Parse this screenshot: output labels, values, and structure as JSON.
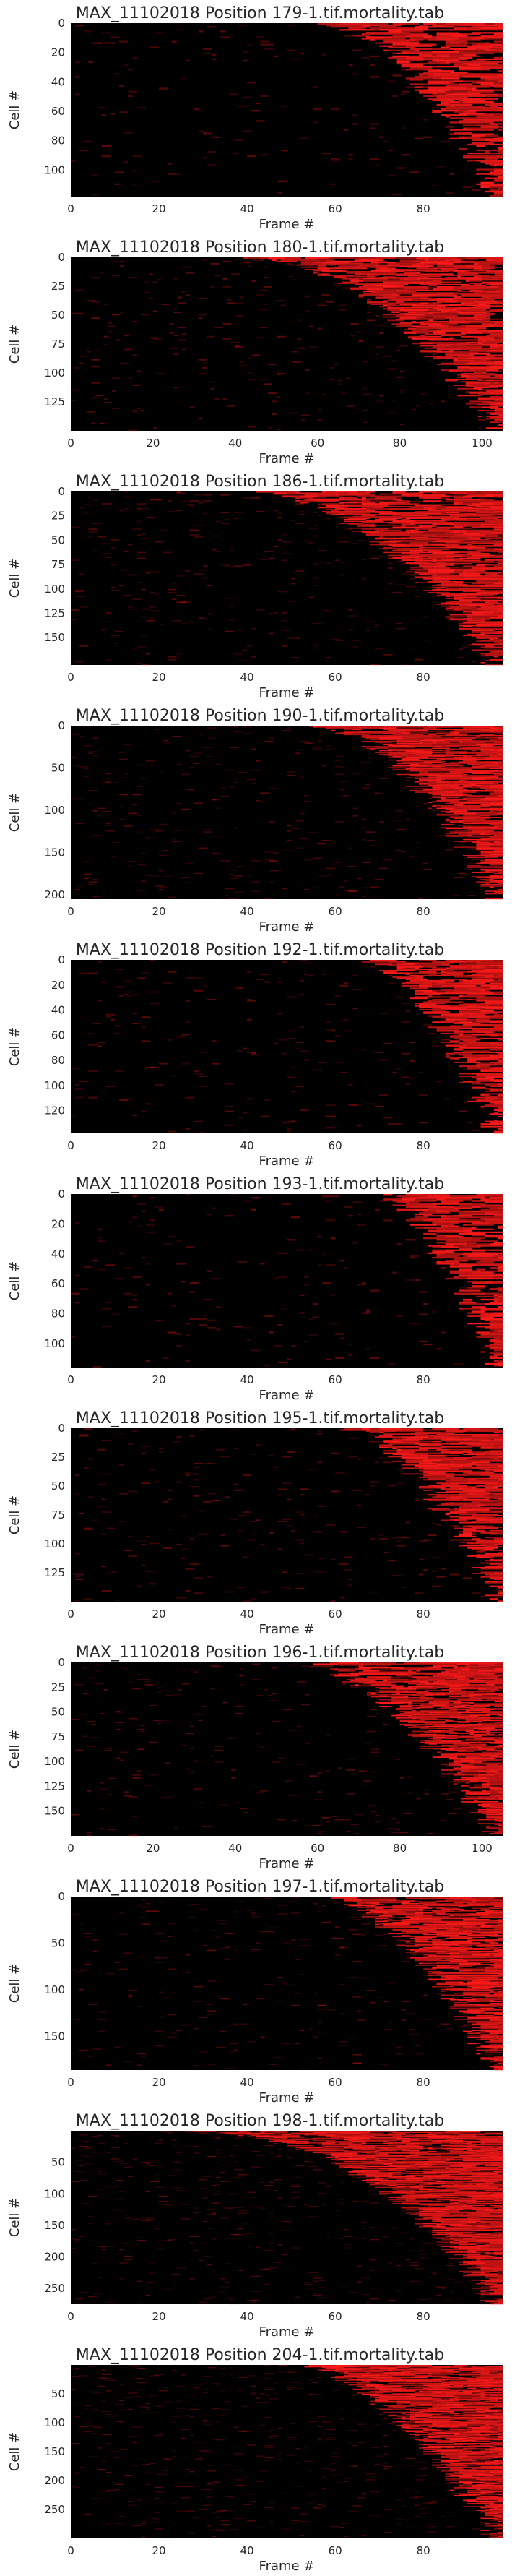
{
  "chart_data": [
    {
      "type": "heatmap",
      "title": "MAX_11102018 Position 179-1.tif.mortality.tab",
      "xlabel": "Frame #",
      "ylabel": "Cell #",
      "xlim": [
        0,
        98
      ],
      "ylim": [
        0,
        118
      ],
      "xticks": [
        "0",
        "20",
        "40",
        "60",
        "80"
      ],
      "yticks": [
        "0",
        "20",
        "40",
        "60",
        "80",
        "100"
      ],
      "xtick_values": [
        0,
        20,
        40,
        60,
        80
      ],
      "ytick_values": [
        0,
        20,
        40,
        60,
        80,
        100
      ],
      "onset": {
        "first_frame": 58,
        "last_frame": 97,
        "shape": 0.55
      }
    },
    {
      "type": "heatmap",
      "title": "MAX_11102018 Position 180-1.tif.mortality.tab",
      "xlabel": "Frame #",
      "ylabel": "Cell #",
      "xlim": [
        0,
        105
      ],
      "ylim": [
        0,
        150
      ],
      "xticks": [
        "0",
        "20",
        "40",
        "60",
        "80",
        "100"
      ],
      "yticks": [
        "0",
        "25",
        "50",
        "75",
        "100",
        "125"
      ],
      "xtick_values": [
        0,
        20,
        40,
        60,
        80,
        100
      ],
      "ytick_values": [
        0,
        25,
        50,
        75,
        100,
        125
      ],
      "onset": {
        "first_frame": 44,
        "last_frame": 104,
        "shape": 0.5
      }
    },
    {
      "type": "heatmap",
      "title": "MAX_11102018 Position 186-1.tif.mortality.tab",
      "xlabel": "Frame #",
      "ylabel": "Cell #",
      "xlim": [
        0,
        98
      ],
      "ylim": [
        0,
        178
      ],
      "xticks": [
        "0",
        "20",
        "40",
        "60",
        "80"
      ],
      "yticks": [
        "0",
        "25",
        "50",
        "75",
        "100",
        "125",
        "150"
      ],
      "xtick_values": [
        0,
        20,
        40,
        60,
        80
      ],
      "ytick_values": [
        0,
        25,
        50,
        75,
        100,
        125,
        150
      ],
      "onset": {
        "first_frame": 40,
        "last_frame": 97,
        "shape": 0.5
      }
    },
    {
      "type": "heatmap",
      "title": "MAX_11102018 Position 190-1.tif.mortality.tab",
      "xlabel": "Frame #",
      "ylabel": "Cell #",
      "xlim": [
        0,
        98
      ],
      "ylim": [
        0,
        205
      ],
      "xticks": [
        "0",
        "20",
        "40",
        "60",
        "80"
      ],
      "yticks": [
        "0",
        "50",
        "100",
        "150",
        "200"
      ],
      "xtick_values": [
        0,
        20,
        40,
        60,
        80
      ],
      "ytick_values": [
        0,
        50,
        100,
        150,
        200
      ],
      "onset": {
        "first_frame": 55,
        "last_frame": 97,
        "shape": 0.5
      }
    },
    {
      "type": "heatmap",
      "title": "MAX_11102018 Position 192-1.tif.mortality.tab",
      "xlabel": "Frame #",
      "ylabel": "Cell #",
      "xlim": [
        0,
        98
      ],
      "ylim": [
        0,
        138
      ],
      "xticks": [
        "0",
        "20",
        "40",
        "60",
        "80"
      ],
      "yticks": [
        "0",
        "20",
        "40",
        "60",
        "80",
        "100",
        "120"
      ],
      "xtick_values": [
        0,
        20,
        40,
        60,
        80
      ],
      "ytick_values": [
        0,
        20,
        40,
        60,
        80,
        100,
        120
      ],
      "onset": {
        "first_frame": 68,
        "last_frame": 97,
        "shape": 0.6
      }
    },
    {
      "type": "heatmap",
      "title": "MAX_11102018 Position 193-1.tif.mortality.tab",
      "xlabel": "Frame #",
      "ylabel": "Cell #",
      "xlim": [
        0,
        98
      ],
      "ylim": [
        0,
        116
      ],
      "xticks": [
        "0",
        "20",
        "40",
        "60",
        "80"
      ],
      "yticks": [
        "0",
        "20",
        "40",
        "60",
        "80",
        "100"
      ],
      "xtick_values": [
        0,
        20,
        40,
        60,
        80
      ],
      "ytick_values": [
        0,
        20,
        40,
        60,
        80,
        100
      ],
      "onset": {
        "first_frame": 71,
        "last_frame": 97,
        "shape": 0.6
      }
    },
    {
      "type": "heatmap",
      "title": "MAX_11102018 Position 195-1.tif.mortality.tab",
      "xlabel": "Frame #",
      "ylabel": "Cell #",
      "xlim": [
        0,
        98
      ],
      "ylim": [
        0,
        150
      ],
      "xticks": [
        "0",
        "20",
        "40",
        "60",
        "80"
      ],
      "yticks": [
        "0",
        "25",
        "50",
        "75",
        "100",
        "125"
      ],
      "xtick_values": [
        0,
        20,
        40,
        60,
        80
      ],
      "ytick_values": [
        0,
        25,
        50,
        75,
        100,
        125
      ],
      "onset": {
        "first_frame": 62,
        "last_frame": 97,
        "shape": 0.55
      }
    },
    {
      "type": "heatmap",
      "title": "MAX_11102018 Position 196-1.tif.mortality.tab",
      "xlabel": "Frame #",
      "ylabel": "Cell #",
      "xlim": [
        0,
        105
      ],
      "ylim": [
        0,
        175
      ],
      "xticks": [
        "0",
        "20",
        "40",
        "60",
        "80",
        "100"
      ],
      "yticks": [
        "0",
        "25",
        "50",
        "75",
        "100",
        "125",
        "150"
      ],
      "xtick_values": [
        0,
        20,
        40,
        60,
        80,
        100
      ],
      "ytick_values": [
        0,
        25,
        50,
        75,
        100,
        125,
        150
      ],
      "onset": {
        "first_frame": 55,
        "last_frame": 104,
        "shape": 0.55
      }
    },
    {
      "type": "heatmap",
      "title": "MAX_11102018 Position 197-1.tif.mortality.tab",
      "xlabel": "Frame #",
      "ylabel": "Cell #",
      "xlim": [
        0,
        98
      ],
      "ylim": [
        0,
        186
      ],
      "xticks": [
        "0",
        "20",
        "40",
        "60",
        "80"
      ],
      "yticks": [
        "0",
        "50",
        "100",
        "150"
      ],
      "xtick_values": [
        0,
        20,
        40,
        60,
        80
      ],
      "ytick_values": [
        0,
        50,
        100,
        150
      ],
      "onset": {
        "first_frame": 58,
        "last_frame": 97,
        "shape": 0.55
      }
    },
    {
      "type": "heatmap",
      "title": "MAX_11102018 Position 198-1.tif.mortality.tab",
      "xlabel": "Frame #",
      "ylabel": "Cell #",
      "xlim": [
        0,
        98
      ],
      "ylim": [
        0,
        275
      ],
      "xticks": [
        "0",
        "20",
        "40",
        "60",
        "80"
      ],
      "yticks": [
        "50",
        "100",
        "150",
        "200",
        "250"
      ],
      "xtick_values": [
        0,
        20,
        40,
        60,
        80
      ],
      "ytick_values": [
        50,
        100,
        150,
        200,
        250
      ],
      "onset": {
        "first_frame": 18,
        "last_frame": 97,
        "shape": 0.35
      }
    },
    {
      "type": "heatmap",
      "title": "MAX_11102018 Position 204-1.tif.mortality.tab",
      "xlabel": "Frame #",
      "ylabel": "Cell #",
      "xlim": [
        0,
        98
      ],
      "ylim": [
        0,
        300
      ],
      "xticks": [
        "0",
        "20",
        "40",
        "60",
        "80"
      ],
      "yticks": [
        "50",
        "100",
        "150",
        "200",
        "250"
      ],
      "xtick_values": [
        0,
        20,
        40,
        60,
        80
      ],
      "ytick_values": [
        50,
        100,
        150,
        200,
        250
      ],
      "onset": {
        "first_frame": 52,
        "last_frame": 97,
        "shape": 0.55
      }
    }
  ],
  "colors": {
    "background": "#000000",
    "signal": "#ff1a1a",
    "text": "#262626"
  },
  "grid": false
}
